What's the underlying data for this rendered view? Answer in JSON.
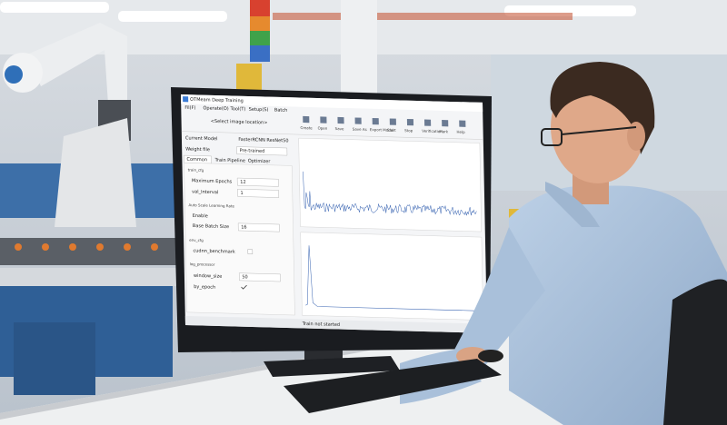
{
  "window": {
    "title": "OTMeam Deep Training",
    "menu": [
      "Fil(F)",
      "Operate(O)",
      "Tool(T)",
      "Setup(S)",
      "Batch"
    ],
    "location": "<Select image location>",
    "toolbar": [
      "Create",
      "Open",
      "Save",
      "Save As",
      "Export Model",
      "Start",
      "Stop",
      "Verification",
      "Mark",
      "Help"
    ],
    "fields": [
      {
        "label": "Current Model",
        "value": "FasterRCNN ResNet50"
      },
      {
        "label": "Weight file",
        "value": "Pre-trained"
      }
    ],
    "tabs": [
      "Common",
      "Train Pipeline",
      "Optimizer"
    ],
    "settings": {
      "train_cfg": "train_cfg",
      "max_epochs_label": "Maximum Epochs",
      "max_epochs": "12",
      "val_interval_label": "val_Interval",
      "val_interval": "1",
      "auto_scale": "Auto Scale Learning Rate",
      "enable": "Enable",
      "batch_label": "Base Batch Size",
      "batch": "16",
      "env_cfg": "env_cfg",
      "cudnn": "cudnn_benchmark",
      "log_processor": "log_processor",
      "window_label": "window_size",
      "window": "50",
      "by_epoch": "by_epoch"
    },
    "status": "Train not started"
  }
}
